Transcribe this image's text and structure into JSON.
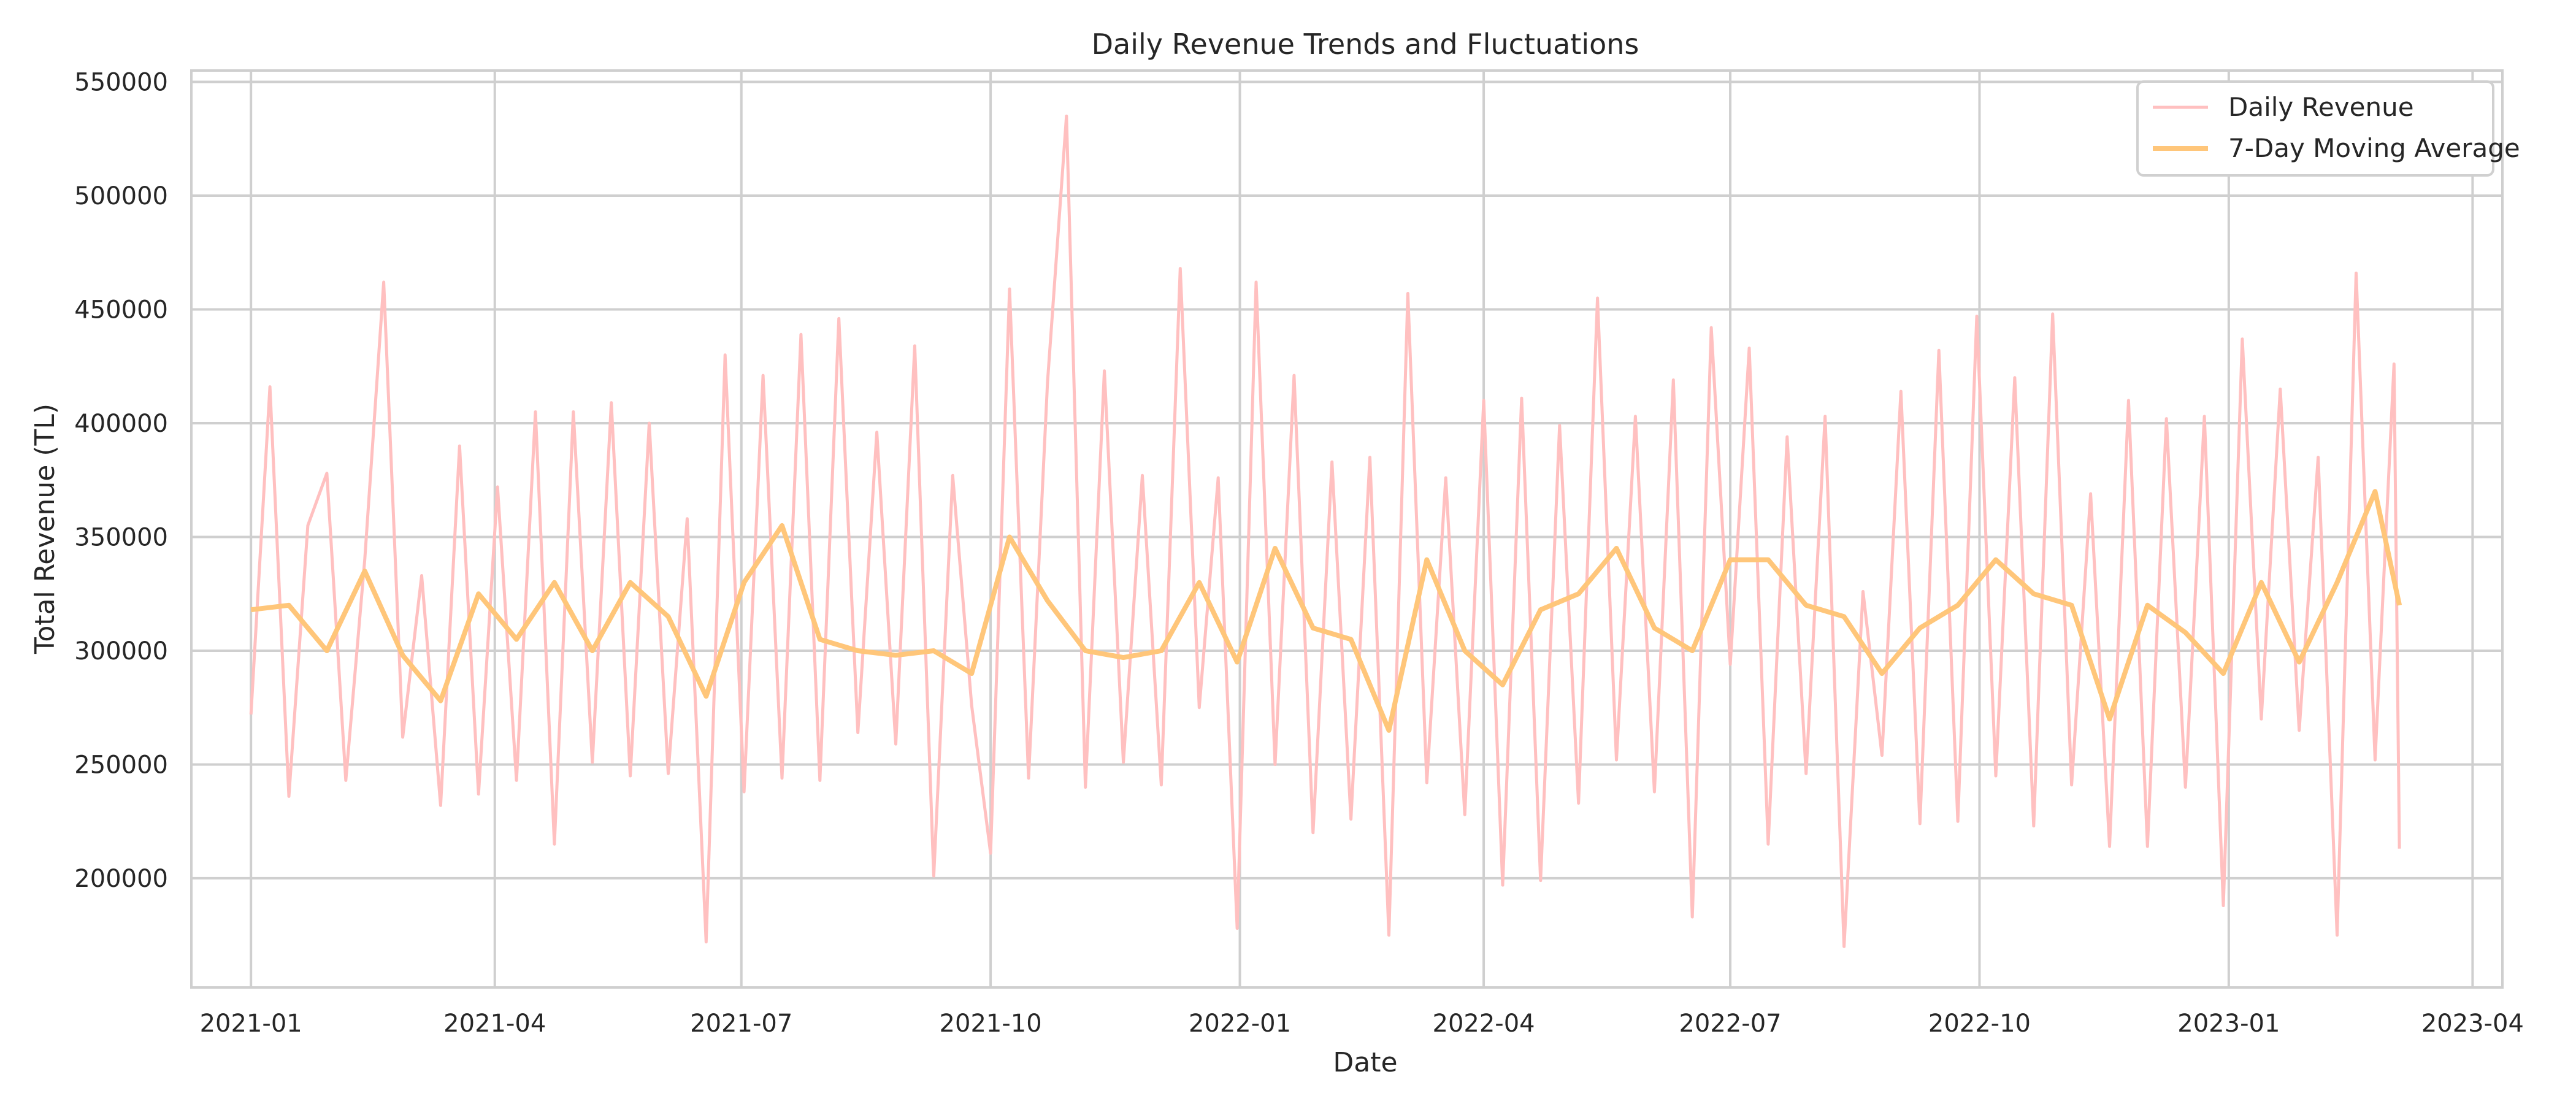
{
  "chart_data": {
    "type": "line",
    "title": "Daily Revenue Trends and Fluctuations",
    "xlabel": "Date",
    "ylabel": "Total Revenue (TL)",
    "xlim": [
      "2020-12-10",
      "2023-04-12"
    ],
    "ylim": [
      152000,
      555000
    ],
    "x_ticks": [
      "2021-01",
      "2021-04",
      "2021-07",
      "2021-10",
      "2022-01",
      "2022-04",
      "2022-07",
      "2022-10",
      "2023-01",
      "2023-04"
    ],
    "y_ticks": [
      200000,
      250000,
      300000,
      350000,
      400000,
      450000,
      500000,
      550000
    ],
    "grid": true,
    "legend_position": "top-right",
    "colors": {
      "daily": "#ffc0c0",
      "moving_average": "#ffc67a"
    },
    "series": [
      {
        "name": "Daily Revenue",
        "x": [
          "2021-01-01",
          "2021-01-08",
          "2021-01-15",
          "2021-01-22",
          "2021-01-29",
          "2021-02-05",
          "2021-02-12",
          "2021-02-19",
          "2021-02-26",
          "2021-03-05",
          "2021-03-12",
          "2021-03-19",
          "2021-03-26",
          "2021-04-02",
          "2021-04-09",
          "2021-04-16",
          "2021-04-23",
          "2021-04-30",
          "2021-05-07",
          "2021-05-14",
          "2021-05-21",
          "2021-05-28",
          "2021-06-04",
          "2021-06-11",
          "2021-06-18",
          "2021-06-25",
          "2021-07-02",
          "2021-07-09",
          "2021-07-16",
          "2021-07-23",
          "2021-07-30",
          "2021-08-06",
          "2021-08-13",
          "2021-08-20",
          "2021-08-27",
          "2021-09-03",
          "2021-09-10",
          "2021-09-17",
          "2021-09-24",
          "2021-10-01",
          "2021-10-08",
          "2021-10-15",
          "2021-10-22",
          "2021-10-29",
          "2021-11-05",
          "2021-11-12",
          "2021-11-19",
          "2021-11-26",
          "2021-12-03",
          "2021-12-10",
          "2021-12-17",
          "2021-12-24",
          "2021-12-31",
          "2022-01-07",
          "2022-01-14",
          "2022-01-21",
          "2022-01-28",
          "2022-02-04",
          "2022-02-11",
          "2022-02-18",
          "2022-02-25",
          "2022-03-04",
          "2022-03-11",
          "2022-03-18",
          "2022-03-25",
          "2022-04-01",
          "2022-04-08",
          "2022-04-15",
          "2022-04-22",
          "2022-04-29",
          "2022-05-06",
          "2022-05-13",
          "2022-05-20",
          "2022-05-27",
          "2022-06-03",
          "2022-06-10",
          "2022-06-17",
          "2022-06-24",
          "2022-07-01",
          "2022-07-08",
          "2022-07-15",
          "2022-07-22",
          "2022-07-29",
          "2022-08-05",
          "2022-08-12",
          "2022-08-19",
          "2022-08-26",
          "2022-09-02",
          "2022-09-09",
          "2022-09-16",
          "2022-09-23",
          "2022-09-30",
          "2022-10-07",
          "2022-10-14",
          "2022-10-21",
          "2022-10-28",
          "2022-11-04",
          "2022-11-11",
          "2022-11-18",
          "2022-11-25",
          "2022-12-02",
          "2022-12-09",
          "2022-12-16",
          "2022-12-23",
          "2022-12-30",
          "2023-01-06",
          "2023-01-13",
          "2023-01-20",
          "2023-01-27",
          "2023-02-03",
          "2023-02-10",
          "2023-02-17",
          "2023-02-24",
          "2023-03-03",
          "2023-03-05"
        ],
        "values": [
          272000,
          416000,
          236000,
          355000,
          378000,
          243000,
          340000,
          462000,
          262000,
          333000,
          232000,
          390000,
          237000,
          372000,
          243000,
          405000,
          215000,
          405000,
          251000,
          409000,
          245000,
          400000,
          246000,
          358000,
          172000,
          430000,
          238000,
          421000,
          244000,
          439000,
          243000,
          446000,
          264000,
          396000,
          259000,
          434000,
          201000,
          377000,
          276000,
          211000,
          459000,
          244000,
          418000,
          535000,
          240000,
          423000,
          251000,
          377000,
          241000,
          468000,
          275000,
          376000,
          178000,
          462000,
          250000,
          421000,
          220000,
          383000,
          226000,
          385000,
          175000,
          457000,
          242000,
          376000,
          228000,
          410000,
          197000,
          411000,
          199000,
          399000,
          233000,
          455000,
          252000,
          403000,
          238000,
          419000,
          183000,
          442000,
          294000,
          433000,
          215000,
          394000,
          246000,
          403000,
          170000,
          326000,
          254000,
          414000,
          224000,
          432000,
          225000,
          447000,
          245000,
          420000,
          223000,
          448000,
          241000,
          369000,
          214000,
          410000,
          214000,
          402000,
          240000,
          403000,
          188000,
          437000,
          270000,
          415000,
          265000,
          385000,
          175000,
          466000,
          252000,
          426000,
          213000
        ],
        "values_extra_note": ""
      },
      {
        "name": "7-Day Moving Average",
        "x": [
          "2021-01-01",
          "2021-01-15",
          "2021-01-29",
          "2021-02-12",
          "2021-02-26",
          "2021-03-12",
          "2021-03-26",
          "2021-04-09",
          "2021-04-23",
          "2021-05-07",
          "2021-05-21",
          "2021-06-04",
          "2021-06-18",
          "2021-07-02",
          "2021-07-16",
          "2021-07-30",
          "2021-08-13",
          "2021-08-27",
          "2021-09-10",
          "2021-09-24",
          "2021-10-08",
          "2021-10-22",
          "2021-11-05",
          "2021-11-19",
          "2021-12-03",
          "2021-12-17",
          "2021-12-31",
          "2022-01-14",
          "2022-01-28",
          "2022-02-11",
          "2022-02-25",
          "2022-03-11",
          "2022-03-25",
          "2022-04-08",
          "2022-04-22",
          "2022-05-06",
          "2022-05-20",
          "2022-06-03",
          "2022-06-17",
          "2022-07-01",
          "2022-07-15",
          "2022-07-29",
          "2022-08-12",
          "2022-08-26",
          "2022-09-09",
          "2022-09-23",
          "2022-10-07",
          "2022-10-21",
          "2022-11-04",
          "2022-11-18",
          "2022-12-02",
          "2022-12-16",
          "2022-12-30",
          "2023-01-13",
          "2023-01-27",
          "2023-02-10",
          "2023-02-24",
          "2023-03-05"
        ],
        "values": [
          318000,
          320000,
          300000,
          335000,
          298000,
          278000,
          325000,
          305000,
          330000,
          300000,
          330000,
          315000,
          280000,
          330000,
          355000,
          305000,
          300000,
          298000,
          300000,
          290000,
          350000,
          322000,
          300000,
          297000,
          300000,
          330000,
          295000,
          345000,
          310000,
          305000,
          265000,
          340000,
          300000,
          285000,
          318000,
          325000,
          345000,
          310000,
          300000,
          340000,
          340000,
          320000,
          315000,
          290000,
          310000,
          320000,
          340000,
          325000,
          320000,
          270000,
          320000,
          308000,
          290000,
          330000,
          295000,
          330000,
          370000,
          320000
        ]
      }
    ]
  }
}
